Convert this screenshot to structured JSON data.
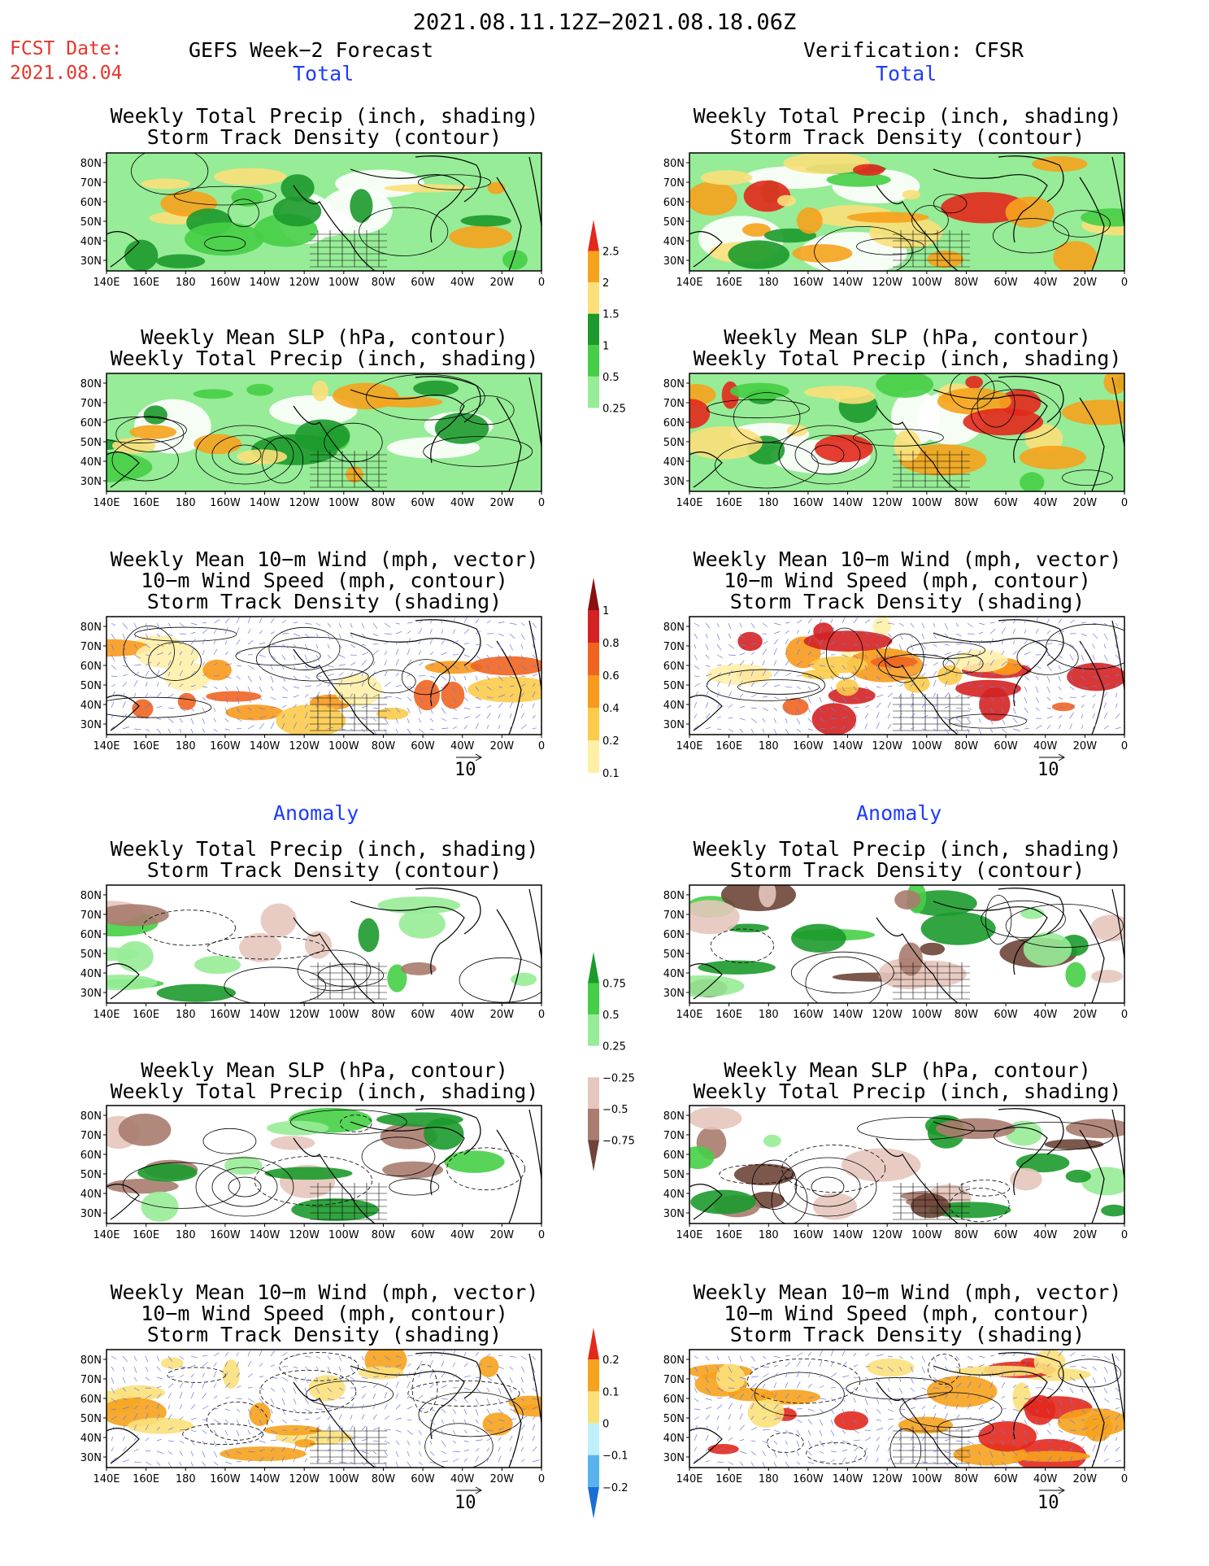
{
  "main_title": "2021.08.11.12Z−2021.08.18.06Z",
  "fcst_label": "FCST Date:",
  "fcst_date": "2021.08.04",
  "left_header": "GEFS Week−2 Forecast",
  "right_header": "Verification: CFSR",
  "section_total": "Total",
  "section_anomaly": "Anomaly",
  "panel_titles": {
    "precip": [
      "Weekly Total Precip (inch, shading)",
      "Storm Track Density (contour)"
    ],
    "slp": [
      "Weekly Mean SLP (hPa, contour)",
      "Weekly Total Precip (inch, shading)"
    ],
    "wind": [
      "Weekly Mean 10−m Wind (mph, vector)",
      "10−m Wind Speed (mph, contour)",
      "Storm Track Density (shading)"
    ]
  },
  "lat_labels": [
    "80N",
    "70N",
    "60N",
    "50N",
    "40N",
    "30N"
  ],
  "lon_labels": [
    "140E",
    "160E",
    "180",
    "160W",
    "140W",
    "120W",
    "100W",
    "80W",
    "60W",
    "40W",
    "20W",
    "0"
  ],
  "vector_scale_label": "10",
  "colorbars": {
    "precip_total": {
      "labels": [
        "2.5",
        "2",
        "1.5",
        "1",
        "0.5",
        "0.25"
      ],
      "colors": [
        "#e3281c",
        "#f6a21c",
        "#fbe07a",
        "#1c9a2c",
        "#46cf46",
        "#97ec97",
        "#ffffff"
      ]
    },
    "track_total": {
      "labels": [
        "1",
        "0.8",
        "0.6",
        "0.4",
        "0.2",
        "0.1"
      ],
      "colors": [
        "#8b1010",
        "#d42222",
        "#f06420",
        "#f89a1c",
        "#fccb4a",
        "#fff0a8",
        "#ffffff"
      ]
    },
    "precip_anom": {
      "labels": [
        "0.75",
        "0.5",
        "0.25",
        "−0.25",
        "−0.5",
        "−0.75"
      ],
      "colors": [
        "#1c9a2c",
        "#46cf46",
        "#97ec97",
        "#ffffff",
        "#e6c7bd",
        "#a87c6e",
        "#6e4538"
      ]
    },
    "track_anom": {
      "labels": [
        "0.2",
        "0.1",
        "0",
        "−0.1",
        "−0.2"
      ],
      "colors": [
        "#e3281c",
        "#f6a21c",
        "#fbe07a",
        "#bff0fa",
        "#58b2ee",
        "#1a6fd6"
      ]
    }
  },
  "colors": {
    "date_red": "#e8352c",
    "section_blue": "#1e3cff",
    "vector_blue": "#6f78e0"
  }
}
